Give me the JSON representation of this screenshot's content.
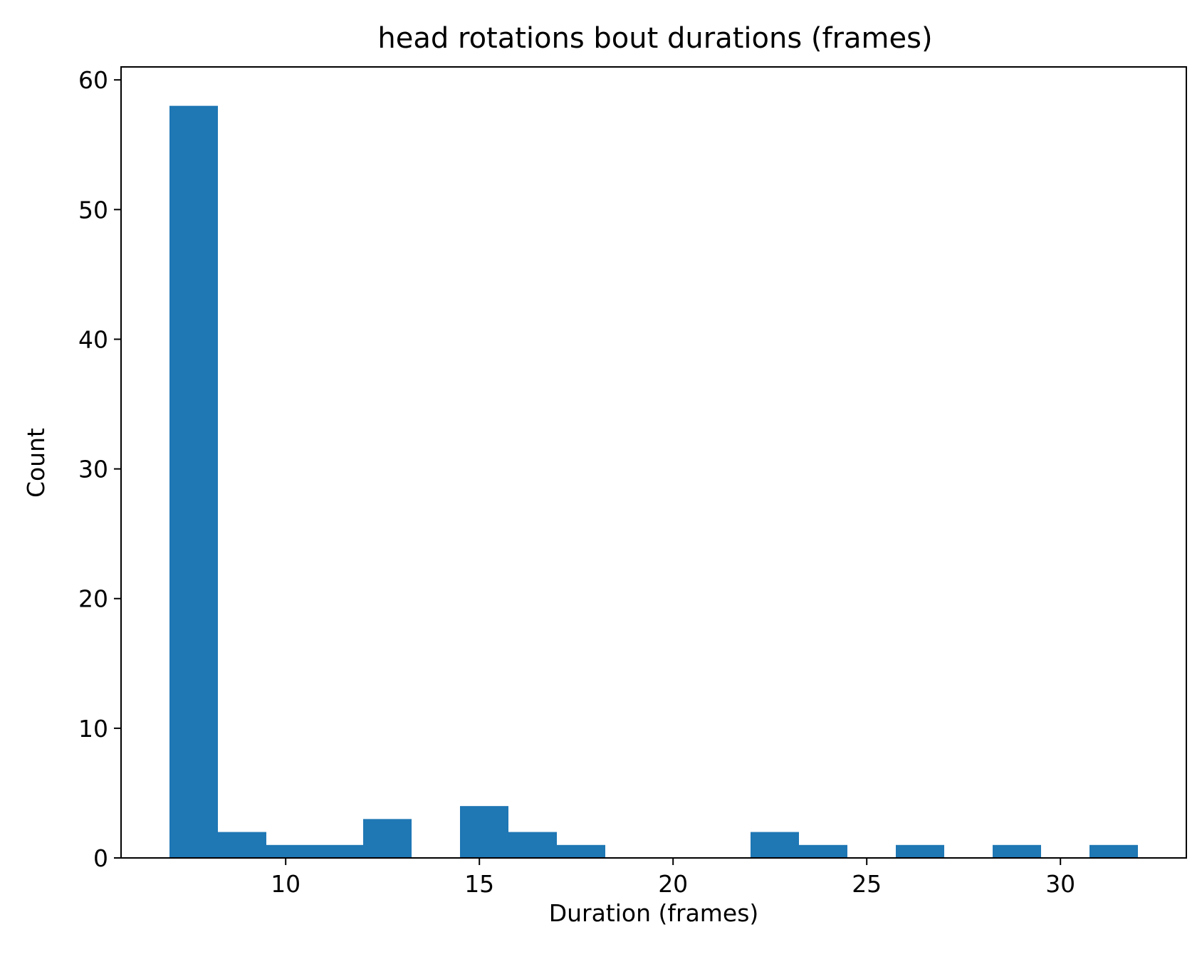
{
  "chart_data": {
    "type": "bar",
    "title": "head rotations bout durations (frames)",
    "xlabel": "Duration (frames)",
    "ylabel": "Count",
    "bin_edges": [
      7.0,
      8.25,
      9.5,
      10.75,
      12.0,
      13.25,
      14.5,
      15.75,
      17.0,
      18.25,
      19.5,
      20.75,
      22.0,
      23.25,
      24.5,
      25.75,
      27.0,
      28.25,
      29.5,
      30.75,
      32.0
    ],
    "values": [
      58,
      2,
      1,
      1,
      3,
      0,
      4,
      2,
      1,
      0,
      0,
      0,
      2,
      1,
      0,
      1,
      0,
      1,
      0,
      1
    ],
    "xlim": [
      5.75,
      33.25
    ],
    "ylim": [
      0,
      61
    ],
    "xticks": [
      10,
      15,
      20,
      25,
      30
    ],
    "yticks": [
      0,
      10,
      20,
      30,
      40,
      50,
      60
    ],
    "bar_color": "#1f77b4",
    "grid": false,
    "legend": "none"
  }
}
